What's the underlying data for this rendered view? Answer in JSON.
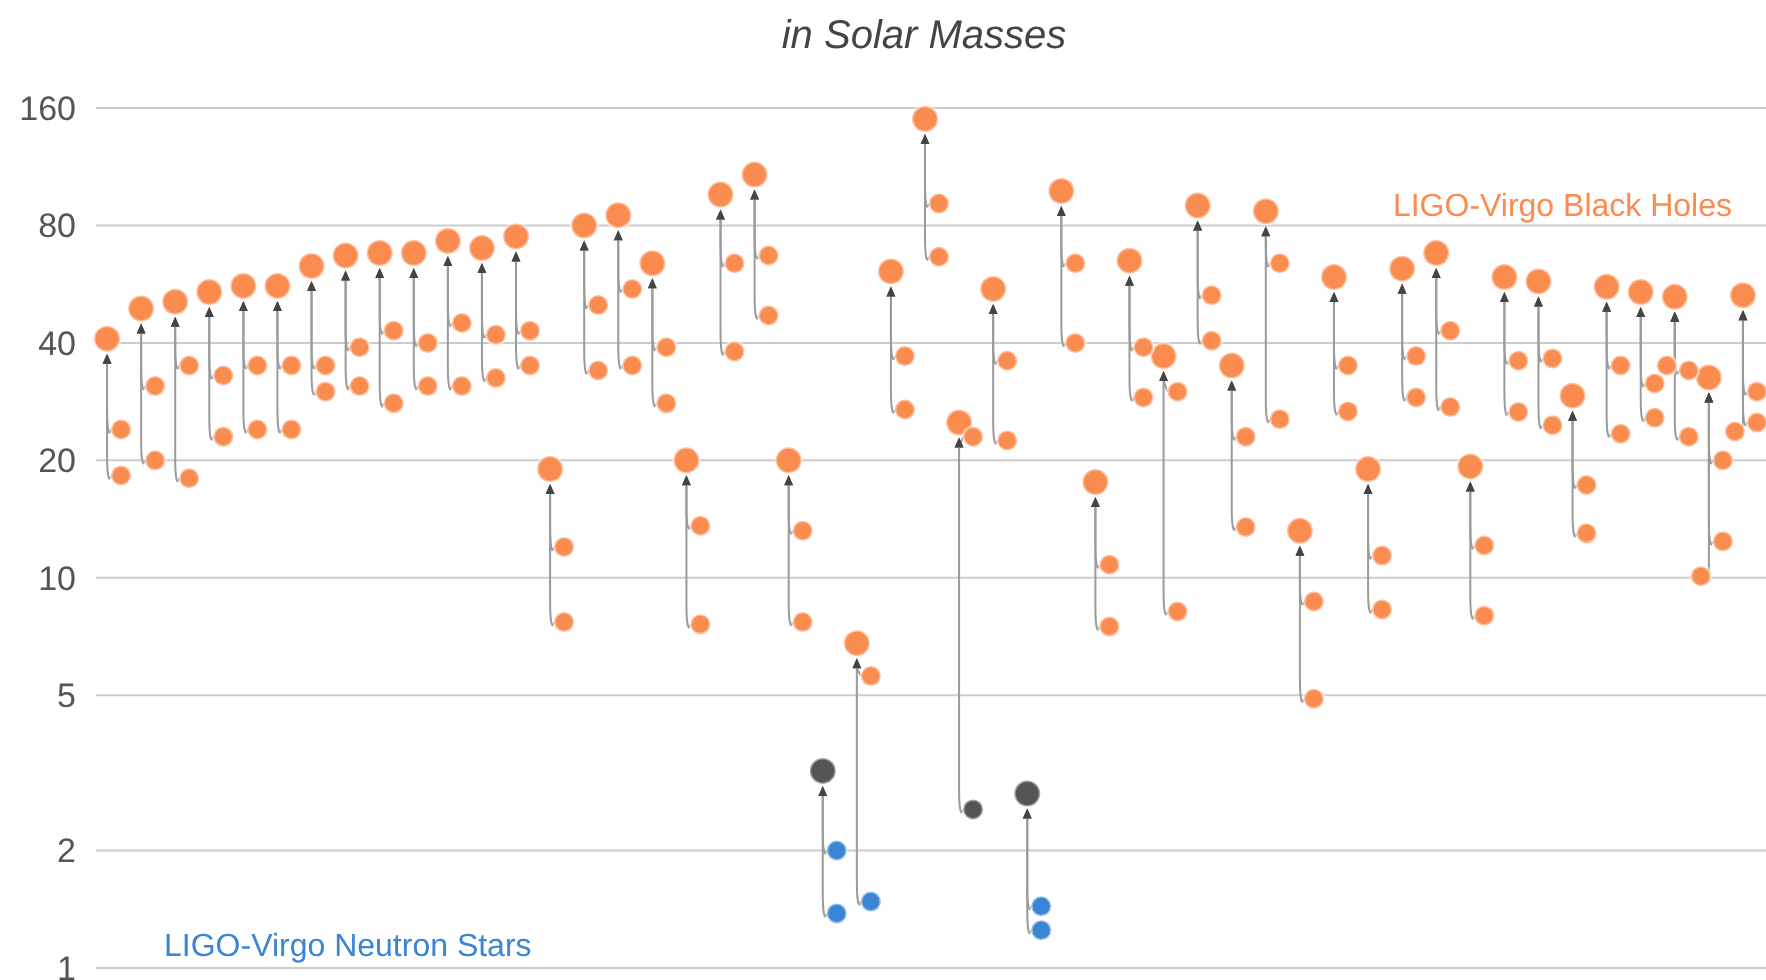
{
  "chart_data": {
    "type": "scatter",
    "title": "in Solar Masses",
    "log": true,
    "grid": "y",
    "marker": "circle",
    "tick_labels": "y",
    "ylim": [
      1,
      160
    ],
    "yticks": [
      1,
      2,
      5,
      10,
      20,
      40,
      80,
      160
    ],
    "categories": [
      null,
      null,
      null,
      null,
      null,
      null,
      null,
      null,
      null,
      null,
      null,
      null,
      null,
      null,
      null,
      null,
      null,
      null,
      null,
      null,
      null,
      null,
      null,
      null,
      null,
      null,
      null,
      null,
      null,
      null,
      null,
      null,
      null,
      null,
      null,
      null,
      null,
      null,
      null,
      null,
      null,
      null,
      null,
      null,
      null,
      null,
      null,
      null,
      null
    ],
    "annotations": [
      "LIGO-Virgo Black Holes",
      "LIGO-Virgo Neutron Stars"
    ],
    "series": [
      {
        "values": [
          41,
          49,
          51,
          54,
          56,
          56,
          63,
          67,
          68,
          68,
          73,
          70,
          75,
          19,
          80,
          85,
          64,
          20,
          96,
          108,
          20,
          3.2,
          6.8,
          61,
          150,
          25,
          55,
          2.8,
          98,
          17.6,
          65,
          37,
          90,
          35,
          87,
          13.2,
          59,
          19,
          62,
          68,
          19.3,
          59,
          57.5,
          29.3,
          55.7,
          54,
          52.5,
          32.6,
          53
        ],
        "colors": [
          "#fb8c4f",
          "#fb8c4f",
          "#fb8c4f",
          "#fb8c4f",
          "#fb8c4f",
          "#fb8c4f",
          "#fb8c4f",
          "#fb8c4f",
          "#fb8c4f",
          "#fb8c4f",
          "#fb8c4f",
          "#fb8c4f",
          "#fb8c4f",
          "#fb8c4f",
          "#fb8c4f",
          "#fb8c4f",
          "#fb8c4f",
          "#fb8c4f",
          "#fb8c4f",
          "#fb8c4f",
          "#fb8c4f",
          "#555555",
          "#fb8c4f",
          "#fb8c4f",
          "#fb8c4f",
          "#fb8c4f",
          "#fb8c4f",
          "#555555",
          "#fb8c4f",
          "#fb8c4f",
          "#fb8c4f",
          "#fb8c4f",
          "#fb8c4f",
          "#fb8c4f",
          "#fb8c4f",
          "#fb8c4f",
          "#fb8c4f",
          "#fb8c4f",
          "#fb8c4f",
          "#fb8c4f",
          "#fb8c4f",
          "#fb8c4f",
          "#fb8c4f",
          "#fb8c4f",
          "#fb8c4f",
          "#fb8c4f",
          "#fb8c4f",
          "#fb8c4f",
          "#fb8c4f"
        ]
      },
      {
        "values": [
          24,
          31,
          35,
          33,
          35,
          35,
          35,
          39,
          43,
          40,
          45,
          42,
          43,
          12,
          50,
          55,
          39,
          13.6,
          64,
          67,
          13.2,
          2.0,
          5.6,
          37,
          91,
          23,
          36,
          1.44,
          64,
          10.8,
          39,
          30,
          53,
          23,
          64,
          8.7,
          35,
          11.4,
          37,
          43,
          12.1,
          36,
          36.5,
          17.3,
          35,
          31.5,
          34,
          20,
          30
        ],
        "colors": [
          "#fb8c4f",
          "#fb8c4f",
          "#fb8c4f",
          "#fb8c4f",
          "#fb8c4f",
          "#fb8c4f",
          "#fb8c4f",
          "#fb8c4f",
          "#fb8c4f",
          "#fb8c4f",
          "#fb8c4f",
          "#fb8c4f",
          "#fb8c4f",
          "#fb8c4f",
          "#fb8c4f",
          "#fb8c4f",
          "#fb8c4f",
          "#fb8c4f",
          "#fb8c4f",
          "#fb8c4f",
          "#fb8c4f",
          "#3a86d4",
          "#fb8c4f",
          "#fb8c4f",
          "#fb8c4f",
          "#fb8c4f",
          "#fb8c4f",
          "#3a86d4",
          "#fb8c4f",
          "#fb8c4f",
          "#fb8c4f",
          "#fb8c4f",
          "#fb8c4f",
          "#fb8c4f",
          "#fb8c4f",
          "#fb8c4f",
          "#fb8c4f",
          "#fb8c4f",
          "#fb8c4f",
          "#fb8c4f",
          "#fb8c4f",
          "#fb8c4f",
          "#fb8c4f",
          "#fb8c4f",
          "#fb8c4f",
          "#fb8c4f",
          "#fb8c4f",
          "#fb8c4f",
          "#fb8c4f"
        ]
      },
      {
        "values": [
          18.3,
          20,
          18,
          23,
          24,
          24,
          30,
          31,
          28,
          31,
          31,
          32.5,
          35,
          7.7,
          34,
          35,
          28,
          7.6,
          38,
          47,
          7.7,
          1.38,
          1.48,
          27,
          66.5,
          2.55,
          22.5,
          1.25,
          40,
          7.5,
          29,
          8.2,
          40.5,
          13.5,
          25.5,
          4.9,
          26.7,
          8.3,
          29,
          27.4,
          8.0,
          26.6,
          24.6,
          13,
          23.4,
          25.7,
          23,
          12.4,
          25
        ],
        "colors": [
          "#fb8c4f",
          "#fb8c4f",
          "#fb8c4f",
          "#fb8c4f",
          "#fb8c4f",
          "#fb8c4f",
          "#fb8c4f",
          "#fb8c4f",
          "#fb8c4f",
          "#fb8c4f",
          "#fb8c4f",
          "#fb8c4f",
          "#fb8c4f",
          "#fb8c4f",
          "#fb8c4f",
          "#fb8c4f",
          "#fb8c4f",
          "#fb8c4f",
          "#fb8c4f",
          "#fb8c4f",
          "#fb8c4f",
          "#3a86d4",
          "#3a86d4",
          "#fb8c4f",
          "#fb8c4f",
          "#555555",
          "#fb8c4f",
          "#3a86d4",
          "#fb8c4f",
          "#fb8c4f",
          "#fb8c4f",
          "#fb8c4f",
          "#fb8c4f",
          "#fb8c4f",
          "#fb8c4f",
          "#fb8c4f",
          "#fb8c4f",
          "#fb8c4f",
          "#fb8c4f",
          "#fb8c4f",
          "#fb8c4f",
          "#fb8c4f",
          "#fb8c4f",
          "#fb8c4f",
          "#fb8c4f",
          "#fb8c4f",
          "#fb8c4f",
          "#fb8c4f",
          "#fb8c4f"
        ]
      },
      {
        "values": [
          null,
          null,
          null,
          null,
          null,
          null,
          null,
          null,
          null,
          null,
          null,
          null,
          null,
          null,
          null,
          null,
          null,
          null,
          null,
          null,
          null,
          null,
          null,
          null,
          null,
          null,
          null,
          null,
          null,
          null,
          null,
          null,
          null,
          null,
          null,
          null,
          null,
          null,
          null,
          null,
          null,
          null,
          null,
          null,
          null,
          null,
          35,
          10.1,
          23.7
        ],
        "color": "#fb8c4f"
      }
    ]
  }
}
